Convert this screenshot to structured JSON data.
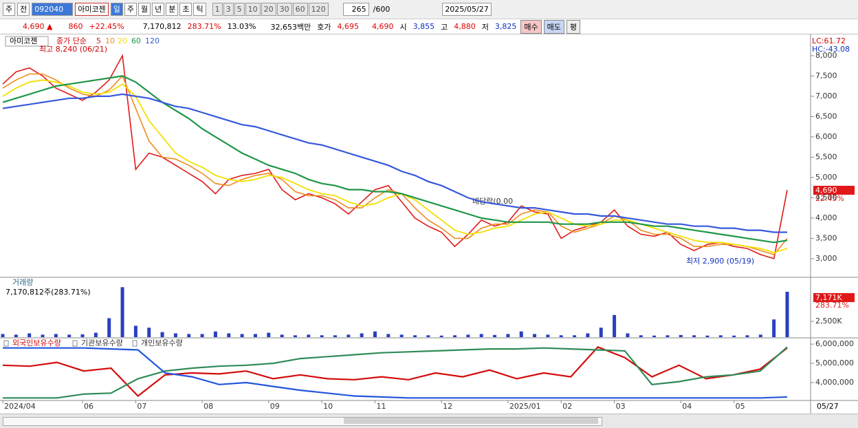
{
  "toolbar": {
    "tab1": "주",
    "tab2": "전",
    "code": "092040",
    "name": "아미코젠",
    "periods": [
      "일",
      "주",
      "월",
      "년",
      "분",
      "초",
      "틱"
    ],
    "intervals": [
      "1",
      "3",
      "5",
      "10",
      "20",
      "30",
      "60",
      "120"
    ],
    "count": "265",
    "max": "/600",
    "date": "2025/05/27"
  },
  "quote": {
    "price": "4,690 ▲",
    "change": "860",
    "rate": "+22.45%",
    "volume": "7,170,812",
    "vol_rate": "283.71%",
    "turnover": "13.03%",
    "amount": "32,653백만",
    "bid_label": "호가",
    "ask": "4,695",
    "bid": "4,690",
    "open_label": "시",
    "open": "3,855",
    "high_label": "고",
    "high": "4,880",
    "low_label": "저",
    "low": "3,825",
    "buy": "매수",
    "sell": "매도",
    "eval": "평"
  },
  "cursor_date": "05/27",
  "chart_data": [
    {
      "type": "line",
      "title": "아미코젠",
      "legend_prefix": "종가 단순",
      "categories": [
        "2024/04",
        null,
        null,
        null,
        null,
        null,
        "06",
        null,
        null,
        null,
        "07",
        null,
        null,
        null,
        null,
        "08",
        null,
        null,
        null,
        null,
        "09",
        null,
        null,
        null,
        "10",
        null,
        null,
        null,
        "11",
        null,
        null,
        null,
        null,
        "12",
        null,
        null,
        null,
        null,
        "2025/01",
        null,
        null,
        null,
        "02",
        null,
        null,
        null,
        "03",
        null,
        null,
        null,
        null,
        "04",
        null,
        null,
        null,
        "05",
        null,
        null,
        null,
        null
      ],
      "series": [
        {
          "name": "5",
          "color": "#e01818",
          "values": [
            7300,
            7600,
            7700,
            7500,
            7200,
            7050,
            6900,
            7100,
            7400,
            8000,
            5200,
            5600,
            5500,
            5300,
            5100,
            4900,
            4600,
            4950,
            5050,
            5100,
            5200,
            4700,
            4450,
            4600,
            4500,
            4350,
            4100,
            4400,
            4700,
            4800,
            4400,
            4000,
            3800,
            3650,
            3300,
            3600,
            3950,
            3800,
            3900,
            4300,
            4150,
            4100,
            3500,
            3700,
            3800,
            3900,
            4200,
            3800,
            3600,
            3550,
            3650,
            3350,
            3200,
            3350,
            3400,
            3300,
            3250,
            3100,
            3000,
            4690
          ]
        },
        {
          "name": "10",
          "color": "#f08a1c",
          "values": [
            7200,
            7400,
            7550,
            7550,
            7400,
            7200,
            7050,
            7000,
            7150,
            7500,
            6700,
            5900,
            5500,
            5450,
            5300,
            5100,
            4850,
            4800,
            4950,
            5050,
            5100,
            4950,
            4650,
            4550,
            4550,
            4450,
            4250,
            4250,
            4500,
            4700,
            4600,
            4250,
            3950,
            3750,
            3500,
            3500,
            3750,
            3850,
            3850,
            4100,
            4200,
            4150,
            3800,
            3650,
            3750,
            3850,
            4050,
            3950,
            3700,
            3600,
            3600,
            3500,
            3300,
            3300,
            3350,
            3350,
            3300,
            3200,
            3100,
            3500
          ]
        },
        {
          "name": "20",
          "color": "#f2e000",
          "values": [
            7000,
            7200,
            7350,
            7400,
            7350,
            7250,
            7100,
            7050,
            7100,
            7300,
            7000,
            6400,
            6000,
            5600,
            5400,
            5250,
            5050,
            4950,
            4900,
            4950,
            5050,
            5000,
            4850,
            4700,
            4600,
            4550,
            4400,
            4300,
            4350,
            4500,
            4600,
            4450,
            4200,
            3950,
            3700,
            3600,
            3650,
            3750,
            3800,
            3950,
            4100,
            4150,
            4000,
            3850,
            3800,
            3850,
            3950,
            3950,
            3850,
            3750,
            3650,
            3550,
            3450,
            3400,
            3400,
            3350,
            3300,
            3250,
            3150,
            3250
          ]
        },
        {
          "name": "60",
          "color": "#1e9646",
          "values": [
            6850,
            6950,
            7050,
            7150,
            7250,
            7300,
            7350,
            7400,
            7450,
            7500,
            7350,
            7100,
            6850,
            6650,
            6450,
            6200,
            6000,
            5800,
            5600,
            5450,
            5300,
            5200,
            5100,
            4950,
            4850,
            4800,
            4700,
            4700,
            4650,
            4650,
            4600,
            4500,
            4400,
            4300,
            4200,
            4100,
            4000,
            3950,
            3900,
            3900,
            3900,
            3900,
            3850,
            3850,
            3850,
            3900,
            3900,
            3900,
            3850,
            3800,
            3800,
            3750,
            3700,
            3650,
            3600,
            3550,
            3500,
            3450,
            3400,
            3450
          ]
        },
        {
          "name": "120",
          "color": "#3558dc",
          "values": [
            6700,
            6750,
            6800,
            6850,
            6900,
            6950,
            6950,
            7000,
            7000,
            7050,
            7000,
            6950,
            6850,
            6750,
            6700,
            6600,
            6500,
            6400,
            6300,
            6250,
            6150,
            6050,
            5950,
            5850,
            5800,
            5700,
            5600,
            5500,
            5400,
            5300,
            5150,
            5050,
            4900,
            4800,
            4650,
            4500,
            4400,
            4350,
            4300,
            4250,
            4250,
            4200,
            4150,
            4100,
            4100,
            4050,
            4050,
            4000,
            3950,
            3900,
            3850,
            3850,
            3800,
            3800,
            3750,
            3750,
            3700,
            3700,
            3650,
            3650
          ]
        }
      ],
      "ylim": [
        2540,
        8490
      ],
      "yticks": [
        {
          "value": 3000,
          "label": "3,000"
        },
        {
          "value": 3500,
          "label": "3,500"
        },
        {
          "value": 4000,
          "label": "4,000"
        },
        {
          "value": 4500,
          "label": "4,500"
        },
        {
          "value": 5000,
          "label": "5,000"
        },
        {
          "value": 5500,
          "label": "5,500"
        },
        {
          "value": 6000,
          "label": "6,000"
        },
        {
          "value": 6500,
          "label": "6,500"
        },
        {
          "value": 7000,
          "label": "7,000"
        },
        {
          "value": 7500,
          "label": "7,500"
        },
        {
          "value": 8000,
          "label": "8,000"
        }
      ],
      "high_note": "최고 8,240 (06/21)",
      "low_note": "최저 2,900 (05/19)",
      "event_note": "배당락(0.00",
      "lc": "LC:61.72",
      "hc": "HC:-43.08",
      "last_label": "4,690",
      "last_rate": "22.45%"
    },
    {
      "type": "bar",
      "title": "거래량",
      "subtitle": "7,170,812주(283.71%)",
      "color": "#2a40c0",
      "values": [
        500,
        400,
        600,
        400,
        500,
        400,
        450,
        700,
        3000,
        7900,
        1800,
        1500,
        800,
        600,
        500,
        500,
        900,
        600,
        500,
        500,
        700,
        400,
        300,
        400,
        300,
        300,
        400,
        600,
        900,
        500,
        400,
        300,
        300,
        250,
        300,
        400,
        500,
        350,
        500,
        900,
        500,
        400,
        300,
        300,
        600,
        1500,
        3500,
        600,
        300,
        250,
        300,
        350,
        300,
        250,
        300,
        250,
        300,
        400,
        2800,
        7171
      ],
      "ylim": [
        0,
        9350
      ],
      "yticks": [
        {
          "value": 2500,
          "label": "2,500K"
        }
      ],
      "last_label": "7,171K",
      "last_rate": "283.71%"
    },
    {
      "type": "line",
      "series": [
        {
          "name": "외국인보유수량",
          "color": "#d40a0a",
          "values": [
            4900000,
            4850000,
            5050000,
            4600000,
            4750000,
            3300000,
            4400000,
            4500000,
            4450000,
            4600000,
            4200000,
            4400000,
            4200000,
            4150000,
            4300000,
            4150000,
            4500000,
            4300000,
            4650000,
            4200000,
            4500000,
            4300000,
            5850000,
            5300000,
            4300000,
            4900000,
            4200000,
            4400000,
            4700000,
            5800000
          ]
        },
        {
          "name": "기관보유수량",
          "color": "#2e8b57",
          "values": [
            3200000,
            3200000,
            3200000,
            3400000,
            3450000,
            4200000,
            4600000,
            4750000,
            4850000,
            4900000,
            5000000,
            5250000,
            5350000,
            5450000,
            5550000,
            5600000,
            5650000,
            5700000,
            5750000,
            5750000,
            5800000,
            5750000,
            5700000,
            5650000,
            3900000,
            4050000,
            4300000,
            4400000,
            4600000,
            5850000
          ]
        },
        {
          "name": "개인보유수량",
          "color": "#2255dd",
          "values": [
            5800000,
            5800000,
            5800000,
            5800000,
            5750000,
            5700000,
            4500000,
            4300000,
            3900000,
            4000000,
            3800000,
            3600000,
            3450000,
            3300000,
            3250000,
            3200000,
            3200000,
            3200000,
            3200000,
            3200000,
            3200000,
            3200000,
            3200000,
            3200000,
            3200000,
            3200000,
            3200000,
            3200000,
            3200000,
            3250000
          ]
        }
      ],
      "ylim": [
        3140000,
        6290000
      ],
      "yticks": [
        {
          "value": 4000000,
          "label": "4,000,000"
        },
        {
          "value": 5000000,
          "label": "5,000,000"
        },
        {
          "value": 6000000,
          "label": "6,000,000"
        }
      ]
    }
  ]
}
